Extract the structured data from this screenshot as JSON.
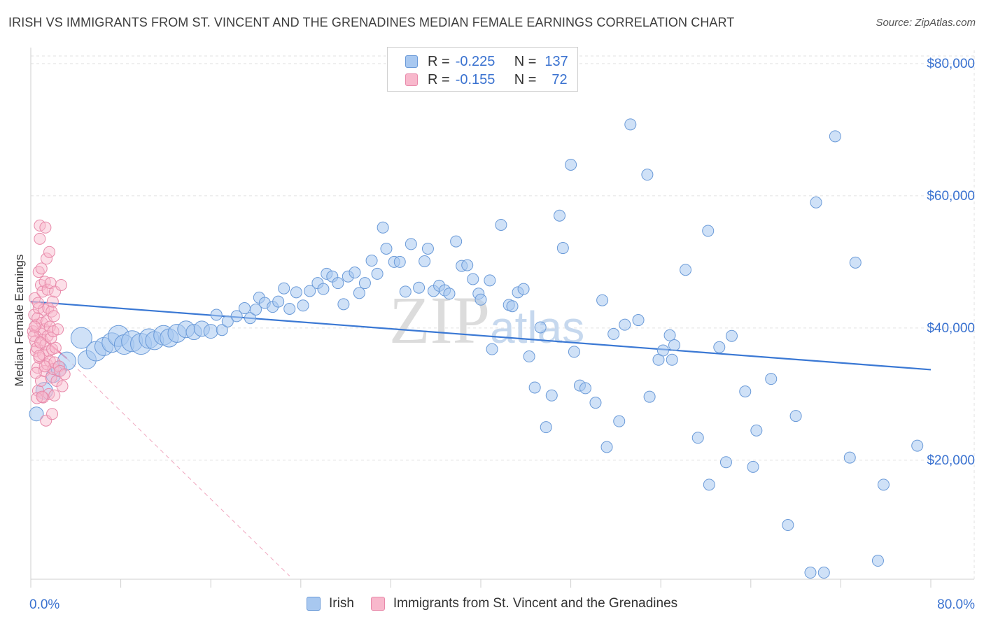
{
  "title": "IRISH VS IMMIGRANTS FROM ST. VINCENT AND THE GRENADINES MEDIAN FEMALE EARNINGS CORRELATION CHART",
  "source": "Source: ZipAtlas.com",
  "watermark": {
    "zip": "ZIP",
    "atlas": "atlas"
  },
  "legend": {
    "r_label": "R =",
    "n_label": "N =",
    "series": [
      {
        "name": "Irish",
        "r": "-0.225",
        "n": "137",
        "fill": "#a8c8f0",
        "stroke": "#6a9ad8"
      },
      {
        "name": "Immigrants from St. Vincent and the Grenadines",
        "r": "-0.155",
        "n": "72",
        "fill": "#f8b8cc",
        "stroke": "#e88aaa"
      }
    ]
  },
  "chart_data": {
    "type": "scatter",
    "title": "IRISH VS IMMIGRANTS FROM ST. VINCENT AND THE GRENADINES MEDIAN FEMALE EARNINGS CORRELATION CHART",
    "xlabel": "",
    "ylabel": "Median Female Earnings",
    "xlim": [
      0,
      80
    ],
    "ylim": [
      2000,
      82000
    ],
    "x_tick_labels": [
      "0.0%",
      "80.0%"
    ],
    "y_ticks": [
      20000,
      40000,
      60000,
      80000
    ],
    "y_tick_labels": [
      "$20,000",
      "$40,000",
      "$60,000",
      "$80,000"
    ],
    "grid": true,
    "colors": {
      "irish": "#3a78d4",
      "svg_immigrants": "#e8739c",
      "axis_text": "#3a72d0"
    },
    "series": [
      {
        "name": "Irish",
        "trend": {
          "x": [
            0,
            80
          ],
          "y": [
            44000,
            33700
          ]
        },
        "points": [
          [
            0.5,
            27000,
            10
          ],
          [
            1.2,
            30500,
            12
          ],
          [
            2.0,
            32800,
            10
          ],
          [
            2.5,
            33800,
            11
          ],
          [
            3.2,
            35000,
            13
          ],
          [
            4.5,
            38500,
            15
          ],
          [
            5.0,
            35200,
            13
          ],
          [
            5.8,
            36500,
            14
          ],
          [
            6.5,
            37200,
            13
          ],
          [
            7.2,
            37800,
            14
          ],
          [
            7.8,
            38800,
            15
          ],
          [
            8.3,
            37500,
            14
          ],
          [
            9.0,
            38000,
            15
          ],
          [
            9.8,
            37600,
            15
          ],
          [
            10.5,
            38400,
            14
          ],
          [
            11.0,
            38100,
            13
          ],
          [
            11.8,
            38900,
            14
          ],
          [
            12.3,
            38500,
            13
          ],
          [
            13.0,
            39200,
            13
          ],
          [
            13.8,
            39800,
            12
          ],
          [
            14.5,
            39400,
            11
          ],
          [
            15.2,
            39900,
            11
          ],
          [
            16.0,
            39500,
            10
          ],
          [
            16.5,
            42000,
            8
          ],
          [
            17.0,
            39700,
            8
          ],
          [
            17.5,
            41000,
            8
          ],
          [
            18.3,
            41800,
            8
          ],
          [
            19.0,
            43000,
            8
          ],
          [
            19.5,
            41500,
            8
          ],
          [
            20.0,
            42800,
            8
          ],
          [
            20.3,
            44600,
            8
          ],
          [
            20.8,
            43800,
            8
          ],
          [
            21.5,
            43200,
            8
          ],
          [
            22.0,
            44000,
            8
          ],
          [
            22.5,
            46000,
            8
          ],
          [
            23.0,
            42900,
            8
          ],
          [
            23.6,
            45400,
            8
          ],
          [
            24.2,
            43400,
            8
          ],
          [
            24.8,
            45600,
            8
          ],
          [
            25.5,
            46800,
            8
          ],
          [
            26.0,
            45900,
            8
          ],
          [
            26.3,
            48200,
            8
          ],
          [
            26.8,
            47800,
            8
          ],
          [
            27.3,
            46800,
            8
          ],
          [
            27.8,
            43600,
            8
          ],
          [
            28.2,
            47800,
            8
          ],
          [
            28.8,
            48400,
            8
          ],
          [
            29.2,
            45300,
            8
          ],
          [
            29.7,
            46800,
            8
          ],
          [
            30.3,
            50200,
            8
          ],
          [
            30.8,
            48200,
            8
          ],
          [
            31.3,
            55200,
            8
          ],
          [
            31.6,
            52000,
            8
          ],
          [
            32.3,
            50000,
            8
          ],
          [
            32.8,
            50000,
            8
          ],
          [
            33.3,
            45500,
            8
          ],
          [
            33.8,
            52700,
            8
          ],
          [
            34.5,
            46100,
            8
          ],
          [
            35.0,
            50100,
            8
          ],
          [
            35.3,
            52000,
            8
          ],
          [
            35.8,
            45600,
            8
          ],
          [
            36.3,
            46400,
            8
          ],
          [
            36.8,
            45700,
            8
          ],
          [
            37.2,
            45200,
            8
          ],
          [
            37.8,
            53100,
            8
          ],
          [
            38.3,
            49400,
            8
          ],
          [
            38.8,
            49500,
            8
          ],
          [
            39.3,
            47400,
            8
          ],
          [
            39.8,
            45200,
            8
          ],
          [
            40.0,
            44300,
            8
          ],
          [
            40.8,
            47200,
            8
          ],
          [
            41.0,
            36800,
            8
          ],
          [
            41.8,
            55600,
            8
          ],
          [
            42.5,
            43500,
            8
          ],
          [
            42.8,
            43300,
            8
          ],
          [
            43.3,
            45400,
            8
          ],
          [
            43.8,
            45900,
            8
          ],
          [
            44.3,
            35700,
            8
          ],
          [
            44.8,
            31000,
            8
          ],
          [
            45.3,
            40100,
            8
          ],
          [
            45.8,
            25000,
            8
          ],
          [
            46.3,
            29800,
            8
          ],
          [
            47.0,
            57000,
            8
          ],
          [
            47.3,
            52100,
            8
          ],
          [
            48.0,
            64700,
            8
          ],
          [
            48.3,
            36400,
            8
          ],
          [
            48.8,
            31300,
            8
          ],
          [
            49.3,
            30900,
            8
          ],
          [
            50.2,
            28700,
            8
          ],
          [
            50.8,
            44200,
            8
          ],
          [
            51.2,
            22000,
            8
          ],
          [
            51.8,
            39100,
            8
          ],
          [
            52.3,
            25900,
            8
          ],
          [
            52.8,
            40500,
            8
          ],
          [
            53.3,
            70800,
            8
          ],
          [
            54.0,
            41200,
            8
          ],
          [
            54.8,
            63200,
            8
          ],
          [
            55.0,
            29600,
            8
          ],
          [
            55.8,
            35200,
            8
          ],
          [
            56.2,
            36600,
            8
          ],
          [
            56.8,
            38900,
            8
          ],
          [
            57.2,
            37400,
            8
          ],
          [
            57.0,
            35200,
            8
          ],
          [
            58.2,
            48800,
            8
          ],
          [
            59.3,
            23400,
            8
          ],
          [
            60.2,
            54700,
            8
          ],
          [
            60.3,
            16300,
            8
          ],
          [
            61.2,
            37100,
            8
          ],
          [
            61.8,
            19700,
            8
          ],
          [
            62.3,
            38800,
            8
          ],
          [
            63.5,
            30400,
            8
          ],
          [
            64.2,
            19000,
            8
          ],
          [
            64.5,
            24500,
            8
          ],
          [
            65.8,
            32300,
            8
          ],
          [
            67.3,
            10200,
            8
          ],
          [
            68.0,
            26700,
            8
          ],
          [
            69.3,
            3000,
            8
          ],
          [
            69.8,
            59000,
            8
          ],
          [
            70.5,
            3000,
            8
          ],
          [
            71.5,
            69000,
            8
          ],
          [
            72.8,
            20400,
            8
          ],
          [
            73.3,
            49900,
            8
          ],
          [
            75.3,
            4800,
            8
          ],
          [
            75.8,
            16300,
            8
          ],
          [
            78.8,
            22200,
            8
          ]
        ]
      },
      {
        "name": "Immigrants from St. Vincent and the Grenadines",
        "trend": {
          "x": [
            0,
            3.2
          ],
          "y": [
            40000,
            35400
          ]
        },
        "trend_ext": {
          "x": [
            3.2,
            23.0
          ],
          "y": [
            35400,
            2500
          ]
        },
        "points": [
          [
            0.2,
            39500,
            8
          ],
          [
            0.3,
            42000,
            8
          ],
          [
            0.35,
            44500,
            8
          ],
          [
            0.4,
            38000,
            8
          ],
          [
            0.45,
            36500,
            8
          ],
          [
            0.5,
            40500,
            8
          ],
          [
            0.55,
            37000,
            8
          ],
          [
            0.6,
            34000,
            8
          ],
          [
            0.6,
            41500,
            8
          ],
          [
            0.65,
            30500,
            8
          ],
          [
            0.7,
            43000,
            8
          ],
          [
            0.7,
            48500,
            8
          ],
          [
            0.75,
            35500,
            8
          ],
          [
            0.8,
            55500,
            8
          ],
          [
            0.8,
            53500,
            8
          ],
          [
            0.85,
            39200,
            8
          ],
          [
            0.9,
            46500,
            8
          ],
          [
            0.9,
            32000,
            8
          ],
          [
            0.95,
            49000,
            8
          ],
          [
            1.0,
            40800,
            8
          ],
          [
            1.0,
            38200,
            8
          ],
          [
            1.05,
            45500,
            8
          ],
          [
            1.1,
            36000,
            8
          ],
          [
            1.1,
            29500,
            8
          ],
          [
            1.15,
            42800,
            8
          ],
          [
            1.2,
            39800,
            8
          ],
          [
            1.2,
            33500,
            8
          ],
          [
            1.25,
            47000,
            8
          ],
          [
            1.3,
            55200,
            8
          ],
          [
            1.3,
            37500,
            8
          ],
          [
            1.35,
            26000,
            8
          ],
          [
            1.4,
            50500,
            8
          ],
          [
            1.4,
            41000,
            8
          ],
          [
            1.45,
            34500,
            8
          ],
          [
            1.5,
            38800,
            8
          ],
          [
            1.5,
            45800,
            8
          ],
          [
            1.55,
            43000,
            8
          ],
          [
            1.6,
            30000,
            8
          ],
          [
            1.6,
            36500,
            8
          ],
          [
            1.65,
            51500,
            8
          ],
          [
            1.7,
            40200,
            8
          ],
          [
            1.7,
            35000,
            8
          ],
          [
            1.75,
            46800,
            8
          ],
          [
            1.8,
            32500,
            8
          ],
          [
            1.8,
            38500,
            8
          ],
          [
            1.85,
            42500,
            8
          ],
          [
            1.9,
            27000,
            8
          ],
          [
            1.9,
            36800,
            8
          ],
          [
            1.95,
            44000,
            8
          ],
          [
            2.0,
            39500,
            8
          ],
          [
            2.0,
            33800,
            8
          ],
          [
            2.05,
            41800,
            8
          ],
          [
            2.1,
            34800,
            8
          ],
          [
            2.1,
            29800,
            8
          ],
          [
            2.15,
            45500,
            8
          ],
          [
            2.2,
            37000,
            8
          ],
          [
            2.3,
            32000,
            8
          ],
          [
            2.4,
            39800,
            8
          ],
          [
            2.5,
            34200,
            8
          ],
          [
            2.6,
            33500,
            8
          ],
          [
            2.7,
            46500,
            8
          ],
          [
            2.8,
            31200,
            8
          ],
          [
            3.0,
            33000,
            8
          ],
          [
            0.25,
            38800,
            8
          ],
          [
            0.35,
            40200,
            8
          ],
          [
            0.45,
            33200,
            8
          ],
          [
            0.55,
            29400,
            8
          ],
          [
            0.65,
            43800,
            8
          ],
          [
            0.75,
            35800,
            8
          ],
          [
            0.85,
            37800,
            8
          ],
          [
            1.0,
            29600,
            8
          ],
          [
            1.25,
            34200,
            8
          ]
        ]
      }
    ]
  }
}
